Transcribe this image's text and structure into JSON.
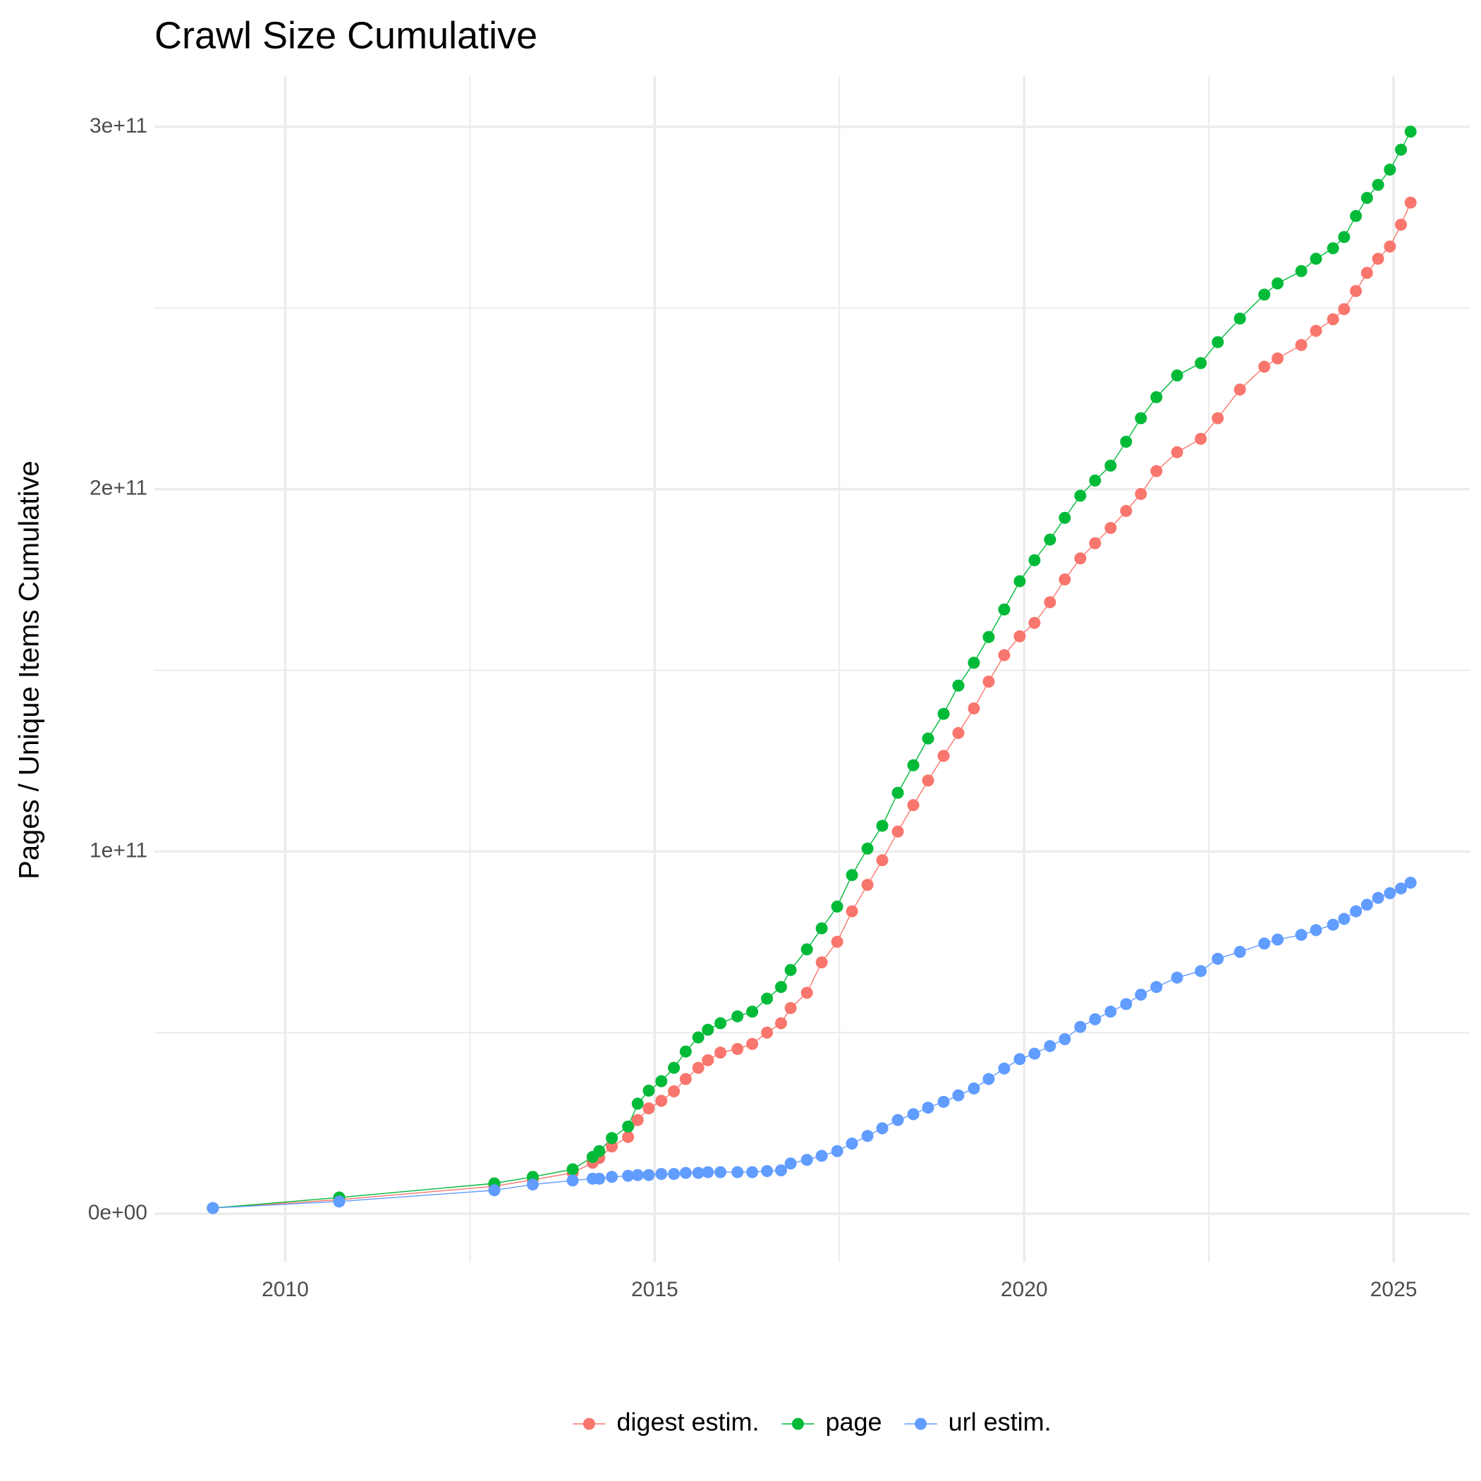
{
  "chart_data": {
    "type": "line",
    "title": "Crawl Size Cumulative",
    "y_label": "Pages / Unique Items Cumulative",
    "x": [
      2009.02,
      2010.73,
      2012.83,
      2013.35,
      2013.89,
      2014.16,
      2014.25,
      2014.42,
      2014.64,
      2014.77,
      2014.92,
      2015.09,
      2015.26,
      2015.42,
      2015.59,
      2015.72,
      2015.89,
      2016.12,
      2016.32,
      2016.52,
      2016.71,
      2016.84,
      2017.06,
      2017.26,
      2017.47,
      2017.67,
      2017.88,
      2018.08,
      2018.29,
      2018.5,
      2018.7,
      2018.91,
      2019.11,
      2019.32,
      2019.52,
      2019.73,
      2019.94,
      2020.14,
      2020.35,
      2020.55,
      2020.76,
      2020.96,
      2021.17,
      2021.38,
      2021.58,
      2021.79,
      2022.07,
      2022.39,
      2022.62,
      2022.92,
      2023.25,
      2023.43,
      2023.75,
      2023.95,
      2024.18,
      2024.33,
      2024.49,
      2024.64,
      2024.79,
      2024.95,
      2025.1,
      2025.23
    ],
    "series": [
      {
        "name": "digest estim.",
        "color": "#F8766D",
        "values": [
          1600000000.0,
          3900000000.0,
          7600000000.0,
          9400000000.0,
          11300000000.0,
          14100000000.0,
          15400000000.0,
          18600000000.0,
          21200000000.0,
          25900000000.0,
          29100000000.0,
          31200000000.0,
          33800000000.0,
          37200000000.0,
          40300000000.0,
          42400000000.0,
          44500000000.0,
          45500000000.0,
          46900000000.0,
          50000000000.0,
          52600000000.0,
          56800000000.0,
          61000000000.0,
          69400000000.0,
          75100000000.0,
          83500000000.0,
          90800000000.0,
          97600000000.0,
          105500000000.0,
          112800000000.0,
          119600000000.0,
          126400000000.0,
          132700000000.0,
          139500000000.0,
          146900000000.0,
          154200000000.0,
          159400000000.0,
          163100000000.0,
          168800000000.0,
          175100000000.0,
          180900000000.0,
          185100000000.0,
          189300000000.0,
          194000000000.0,
          198700000000.0,
          205000000000.0,
          210200000000.0,
          213900000000.0,
          219600000000.0,
          227500000000.0,
          233800000000.0,
          236100000000.0,
          239800000000.0,
          243700000000.0,
          246900000000.0,
          249700000000.0,
          254700000000.0,
          259700000000.0,
          263600000000.0,
          267000000000.0,
          273000000000.0,
          279100000000.0
        ]
      },
      {
        "name": "page",
        "color": "#00BA38",
        "values": [
          1600000000.0,
          4500000000.0,
          8400000000.0,
          10200000000.0,
          12300000000.0,
          15700000000.0,
          17300000000.0,
          20900000000.0,
          24100000000.0,
          30400000000.0,
          34000000000.0,
          36600000000.0,
          40300000000.0,
          44800000000.0,
          48700000000.0,
          50800000000.0,
          52600000000.0,
          54500000000.0,
          55800000000.0,
          59400000000.0,
          62600000000.0,
          67300000000.0,
          73000000000.0,
          78800000000.0,
          84800000000.0,
          93500000000.0,
          100800000000.0,
          107100000000.0,
          116200000000.0,
          123800000000.0,
          131200000000.0,
          138000000000.0,
          145800000000.0,
          152100000000.0,
          159200000000.0,
          166800000000.0,
          174600000000.0,
          180400000000.0,
          186100000000.0,
          192100000000.0,
          198200000000.0,
          202400000000.0,
          206500000000.0,
          213100000000.0,
          219600000000.0,
          225400000000.0,
          231400000000.0,
          234800000000.0,
          240600000000.0,
          247100000000.0,
          253700000000.0,
          256800000000.0,
          260200000000.0,
          263600000000.0,
          266500000000.0,
          269600000000.0,
          275400000000.0,
          280400000000.0,
          284000000000.0,
          288200000000.0,
          293700000000.0,
          298700000000.0
        ]
      },
      {
        "name": "url estim.",
        "color": "#619CFF",
        "values": [
          1600000000.0,
          3400000000.0,
          6500000000.0,
          8100000000.0,
          9200000000.0,
          9700000000.0,
          9700000000.0,
          10200000000.0,
          10500000000.0,
          10700000000.0,
          10700000000.0,
          11000000000.0,
          11000000000.0,
          11300000000.0,
          11300000000.0,
          11500000000.0,
          11500000000.0,
          11500000000.0,
          11500000000.0,
          11800000000.0,
          12000000000.0,
          13900000000.0,
          14900000000.0,
          16000000000.0,
          17300000000.0,
          19400000000.0,
          21500000000.0,
          23600000000.0,
          25900000000.0,
          27500000000.0,
          29300000000.0,
          30900000000.0,
          32700000000.0,
          34600000000.0,
          37200000000.0,
          40100000000.0,
          42700000000.0,
          44200000000.0,
          46300000000.0,
          48200000000.0,
          51600000000.0,
          53700000000.0,
          55800000000.0,
          57900000000.0,
          60500000000.0,
          62600000000.0,
          65200000000.0,
          67000000000.0,
          70400000000.0,
          72300000000.0,
          74600000000.0,
          75700000000.0,
          77000000000.0,
          78300000000.0,
          79800000000.0,
          81400000000.0,
          83500000000.0,
          85300000000.0,
          87200000000.0,
          88500000000.0,
          89800000000.0,
          91400000000.0
        ]
      }
    ],
    "xlim": [
      2008.23,
      2026.03
    ],
    "xticks": [
      2010,
      2015,
      2020,
      2025
    ],
    "ylim": [
      -13400000000,
      314000000000
    ],
    "yticks": [
      {
        "value": 0,
        "label": "0e+00"
      },
      {
        "value": 100000000000,
        "label": "1e+11"
      },
      {
        "value": 200000000000,
        "label": "2e+11"
      },
      {
        "value": 300000000000,
        "label": "3e+11"
      }
    ],
    "grid": true,
    "legend": "bottom"
  }
}
